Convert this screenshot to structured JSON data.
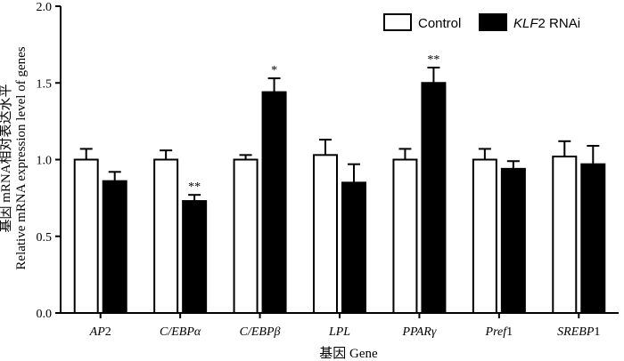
{
  "chart_data": {
    "type": "bar",
    "xlabel": "基因 Gene",
    "ylabel_cn": "基因 mRNA相对表达水平",
    "ylabel_en": "Relative mRNA expression level of genes",
    "ylim": [
      0,
      2.0
    ],
    "yticks": [
      "0.0",
      "0.5",
      "1.0",
      "1.5",
      "2.0"
    ],
    "categories": [
      {
        "italic": "AP",
        "plain": "2"
      },
      {
        "italic": "C/EBPα",
        "plain": ""
      },
      {
        "italic": "C/EBPβ",
        "plain": ""
      },
      {
        "italic": "LPL",
        "plain": ""
      },
      {
        "italic": "PPARγ",
        "plain": ""
      },
      {
        "italic": "Pref",
        "plain": "1"
      },
      {
        "italic": "SREBP",
        "plain": "1"
      }
    ],
    "series": [
      {
        "name": "Control",
        "name_italic": "",
        "name_plain": "Control",
        "fill": "#ffffff",
        "values": [
          1.0,
          1.0,
          1.0,
          1.03,
          1.0,
          1.0,
          1.02
        ],
        "errors": [
          0.07,
          0.06,
          0.03,
          0.1,
          0.07,
          0.07,
          0.1
        ],
        "significance": [
          "",
          "",
          "",
          "",
          "",
          "",
          ""
        ]
      },
      {
        "name": "KLF2 RNAi",
        "name_italic": "KLF",
        "name_plain": "2 RNAi",
        "fill": "#000000",
        "values": [
          0.86,
          0.73,
          1.44,
          0.85,
          1.5,
          0.94,
          0.97
        ],
        "errors": [
          0.06,
          0.04,
          0.09,
          0.12,
          0.1,
          0.05,
          0.12
        ],
        "significance": [
          "",
          "**",
          "*",
          "",
          "**",
          "",
          ""
        ]
      }
    ]
  }
}
